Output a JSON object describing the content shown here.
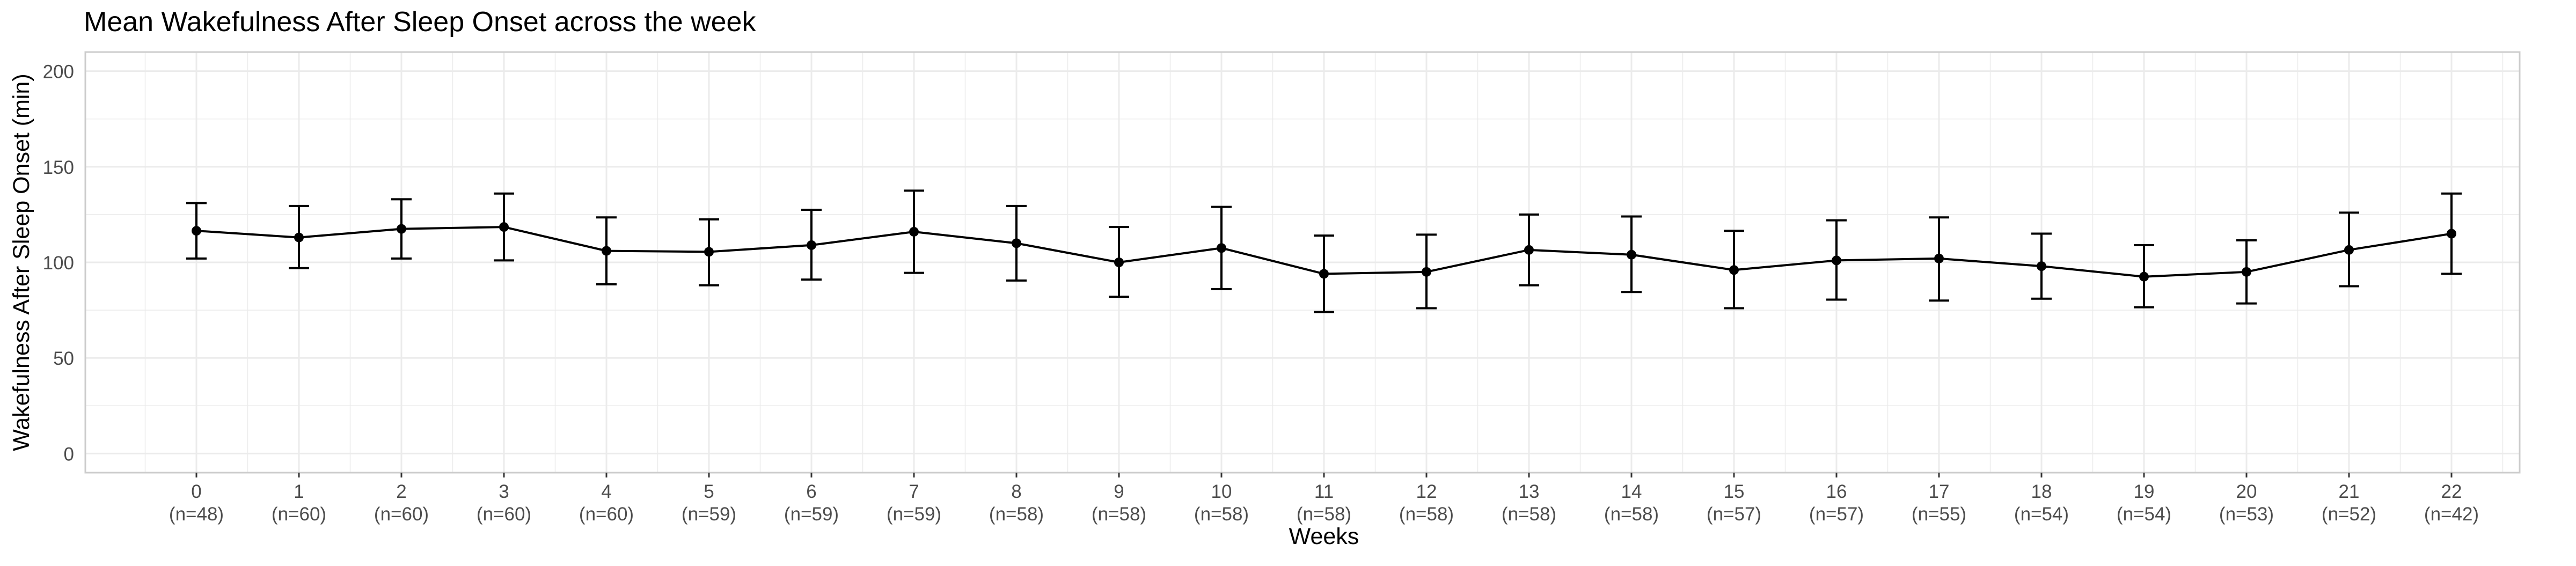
{
  "chart_data": {
    "type": "line",
    "title": "Mean Wakefulness After Sleep Onset across the week",
    "xlabel": "Weeks",
    "ylabel": "Wakefulness After Sleep Onset (min)",
    "ylim": [
      -10,
      210
    ],
    "yticks": [
      0,
      50,
      100,
      150,
      200
    ],
    "grid": true,
    "legend": "none",
    "categories": [
      "0",
      "1",
      "2",
      "3",
      "4",
      "5",
      "6",
      "7",
      "8",
      "9",
      "10",
      "11",
      "12",
      "13",
      "14",
      "15",
      "16",
      "17",
      "18",
      "19",
      "20",
      "21",
      "22"
    ],
    "n_labels": [
      "(n=48)",
      "(n=60)",
      "(n=60)",
      "(n=60)",
      "(n=60)",
      "(n=59)",
      "(n=59)",
      "(n=59)",
      "(n=58)",
      "(n=58)",
      "(n=58)",
      "(n=58)",
      "(n=58)",
      "(n=58)",
      "(n=58)",
      "(n=57)",
      "(n=57)",
      "(n=55)",
      "(n=54)",
      "(n=54)",
      "(n=53)",
      "(n=52)",
      "(n=42)"
    ],
    "series": [
      {
        "values": [
          116.5,
          113,
          117.5,
          118.5,
          106,
          105.5,
          109,
          116,
          110,
          100,
          107.5,
          94,
          95,
          106.5,
          104,
          96,
          101,
          102,
          98,
          92.5,
          95,
          106.5,
          115
        ],
        "upper": [
          131,
          129.5,
          133,
          136,
          123.5,
          122.5,
          127.5,
          137.5,
          129.5,
          118.5,
          129,
          114,
          114.5,
          125,
          124,
          116.5,
          122,
          123.5,
          115,
          109,
          111.5,
          126,
          136
        ],
        "lower": [
          102,
          97,
          102,
          101,
          88.5,
          88,
          91,
          94.5,
          90.5,
          82,
          86,
          74,
          76,
          88,
          84.5,
          76,
          80.5,
          80,
          81,
          76.5,
          78.5,
          87.5,
          94
        ]
      }
    ],
    "colors": {
      "line": "#000000",
      "grid": "#ebebeb",
      "panel_border": "#cccccc",
      "axis_text": "#4d4d4d",
      "title": "#000000"
    }
  }
}
